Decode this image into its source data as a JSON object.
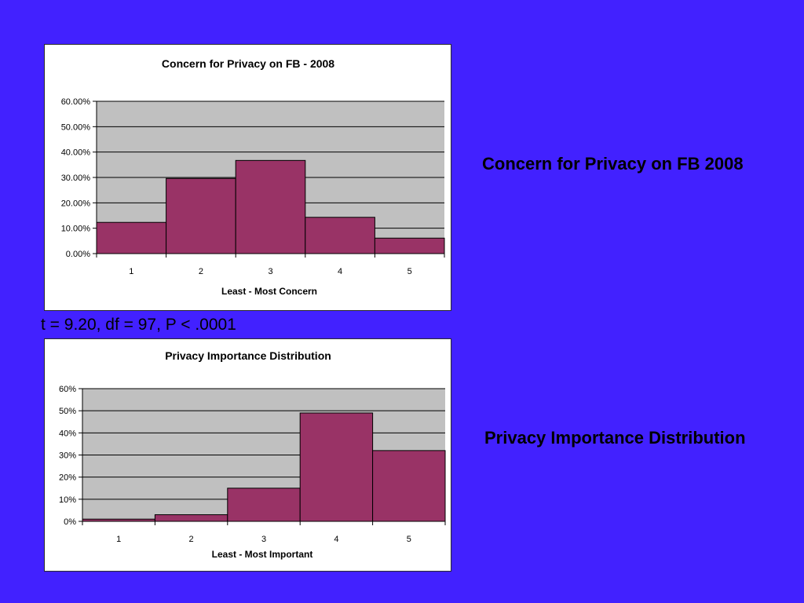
{
  "colors": {
    "background": "#4221ff",
    "bar": "#993366",
    "plot_area": "#c0c0c0"
  },
  "side_labels": {
    "top": "Concern for Privacy on FB 2008",
    "bottom": "Privacy Importance Distribution"
  },
  "stat_text": "t = 9.20, df = 97, P < .0001",
  "chart_data": [
    {
      "type": "bar",
      "title": "Concern for Privacy on FB - 2008",
      "xlabel": "Least - Most Concern",
      "ylabel": "",
      "categories": [
        "1",
        "2",
        "3",
        "4",
        "5"
      ],
      "values": [
        0.123,
        0.296,
        0.367,
        0.143,
        0.061
      ],
      "ylim": [
        0,
        0.6
      ],
      "yticks": [
        "0.00%",
        "10.00%",
        "20.00%",
        "30.00%",
        "40.00%",
        "50.00%",
        "60.00%"
      ],
      "grid": true,
      "legend": "none"
    },
    {
      "type": "bar",
      "title": "Privacy Importance Distribution",
      "xlabel": "Least - Most Important",
      "ylabel": "",
      "categories": [
        "1",
        "2",
        "3",
        "4",
        "5"
      ],
      "values": [
        0.01,
        0.03,
        0.15,
        0.49,
        0.32
      ],
      "ylim": [
        0,
        0.6
      ],
      "yticks": [
        "0%",
        "10%",
        "20%",
        "30%",
        "40%",
        "50%",
        "60%"
      ],
      "grid": true,
      "legend": "none"
    }
  ]
}
